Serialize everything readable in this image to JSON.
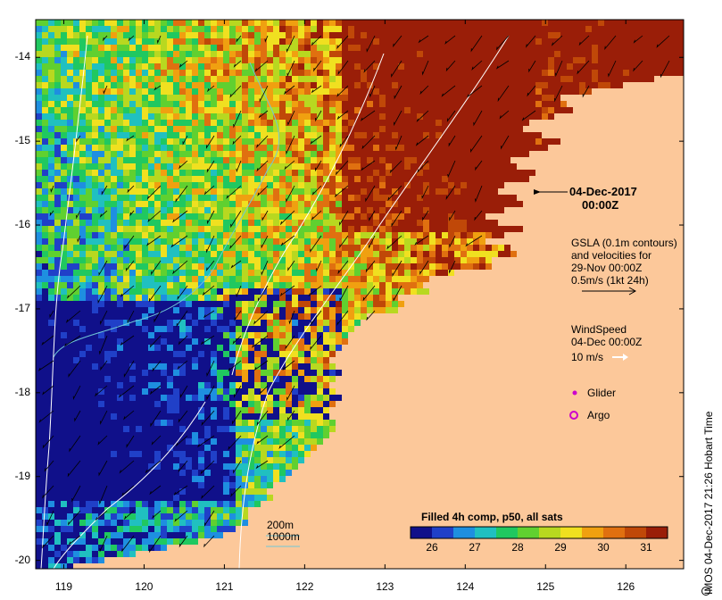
{
  "map": {
    "x_ticks": [
      "119",
      "120",
      "121",
      "122",
      "123",
      "124",
      "125",
      "126"
    ],
    "y_ticks": [
      "-14",
      "-15",
      "-16",
      "-17",
      "-18",
      "-19",
      "-20"
    ],
    "lon_range": [
      118.65,
      126.72
    ],
    "lat_range": [
      -20.1,
      -13.55
    ],
    "ocean_palette": [
      "#10108a",
      "#2040c8",
      "#1e8fe0",
      "#20c0c0",
      "#20c860",
      "#60d030",
      "#b8d820",
      "#f0e020",
      "#f0a010",
      "#e07010",
      "#c04808",
      "#9a1e08"
    ],
    "land_color": "#fcc89a"
  },
  "annotations": {
    "date_line1": "04-Dec-2017",
    "date_line2": "00:00Z",
    "gsla_line1": "GSLA (0.1m contours)",
    "gsla_line2": "and velocities for",
    "gsla_line3": "29-Nov 00:00Z",
    "gsla_line4": "0.5m/s (1kt 24h)",
    "wind_line1": "WindSpeed",
    "wind_line2": "04-Dec 00:00Z",
    "wind_line3": "10 m/s",
    "glider_label": "Glider",
    "argo_label": "Argo",
    "depth_200": "200m",
    "depth_1000": "1000m",
    "credit": "IMOS 04-Dec-2017 21:26 Hobart Time"
  },
  "colorbar": {
    "title": "Filled 4h comp, p50, all sats",
    "ticks": [
      "26",
      "27",
      "28",
      "29",
      "30",
      "31"
    ],
    "range": [
      25.5,
      31.5
    ]
  }
}
